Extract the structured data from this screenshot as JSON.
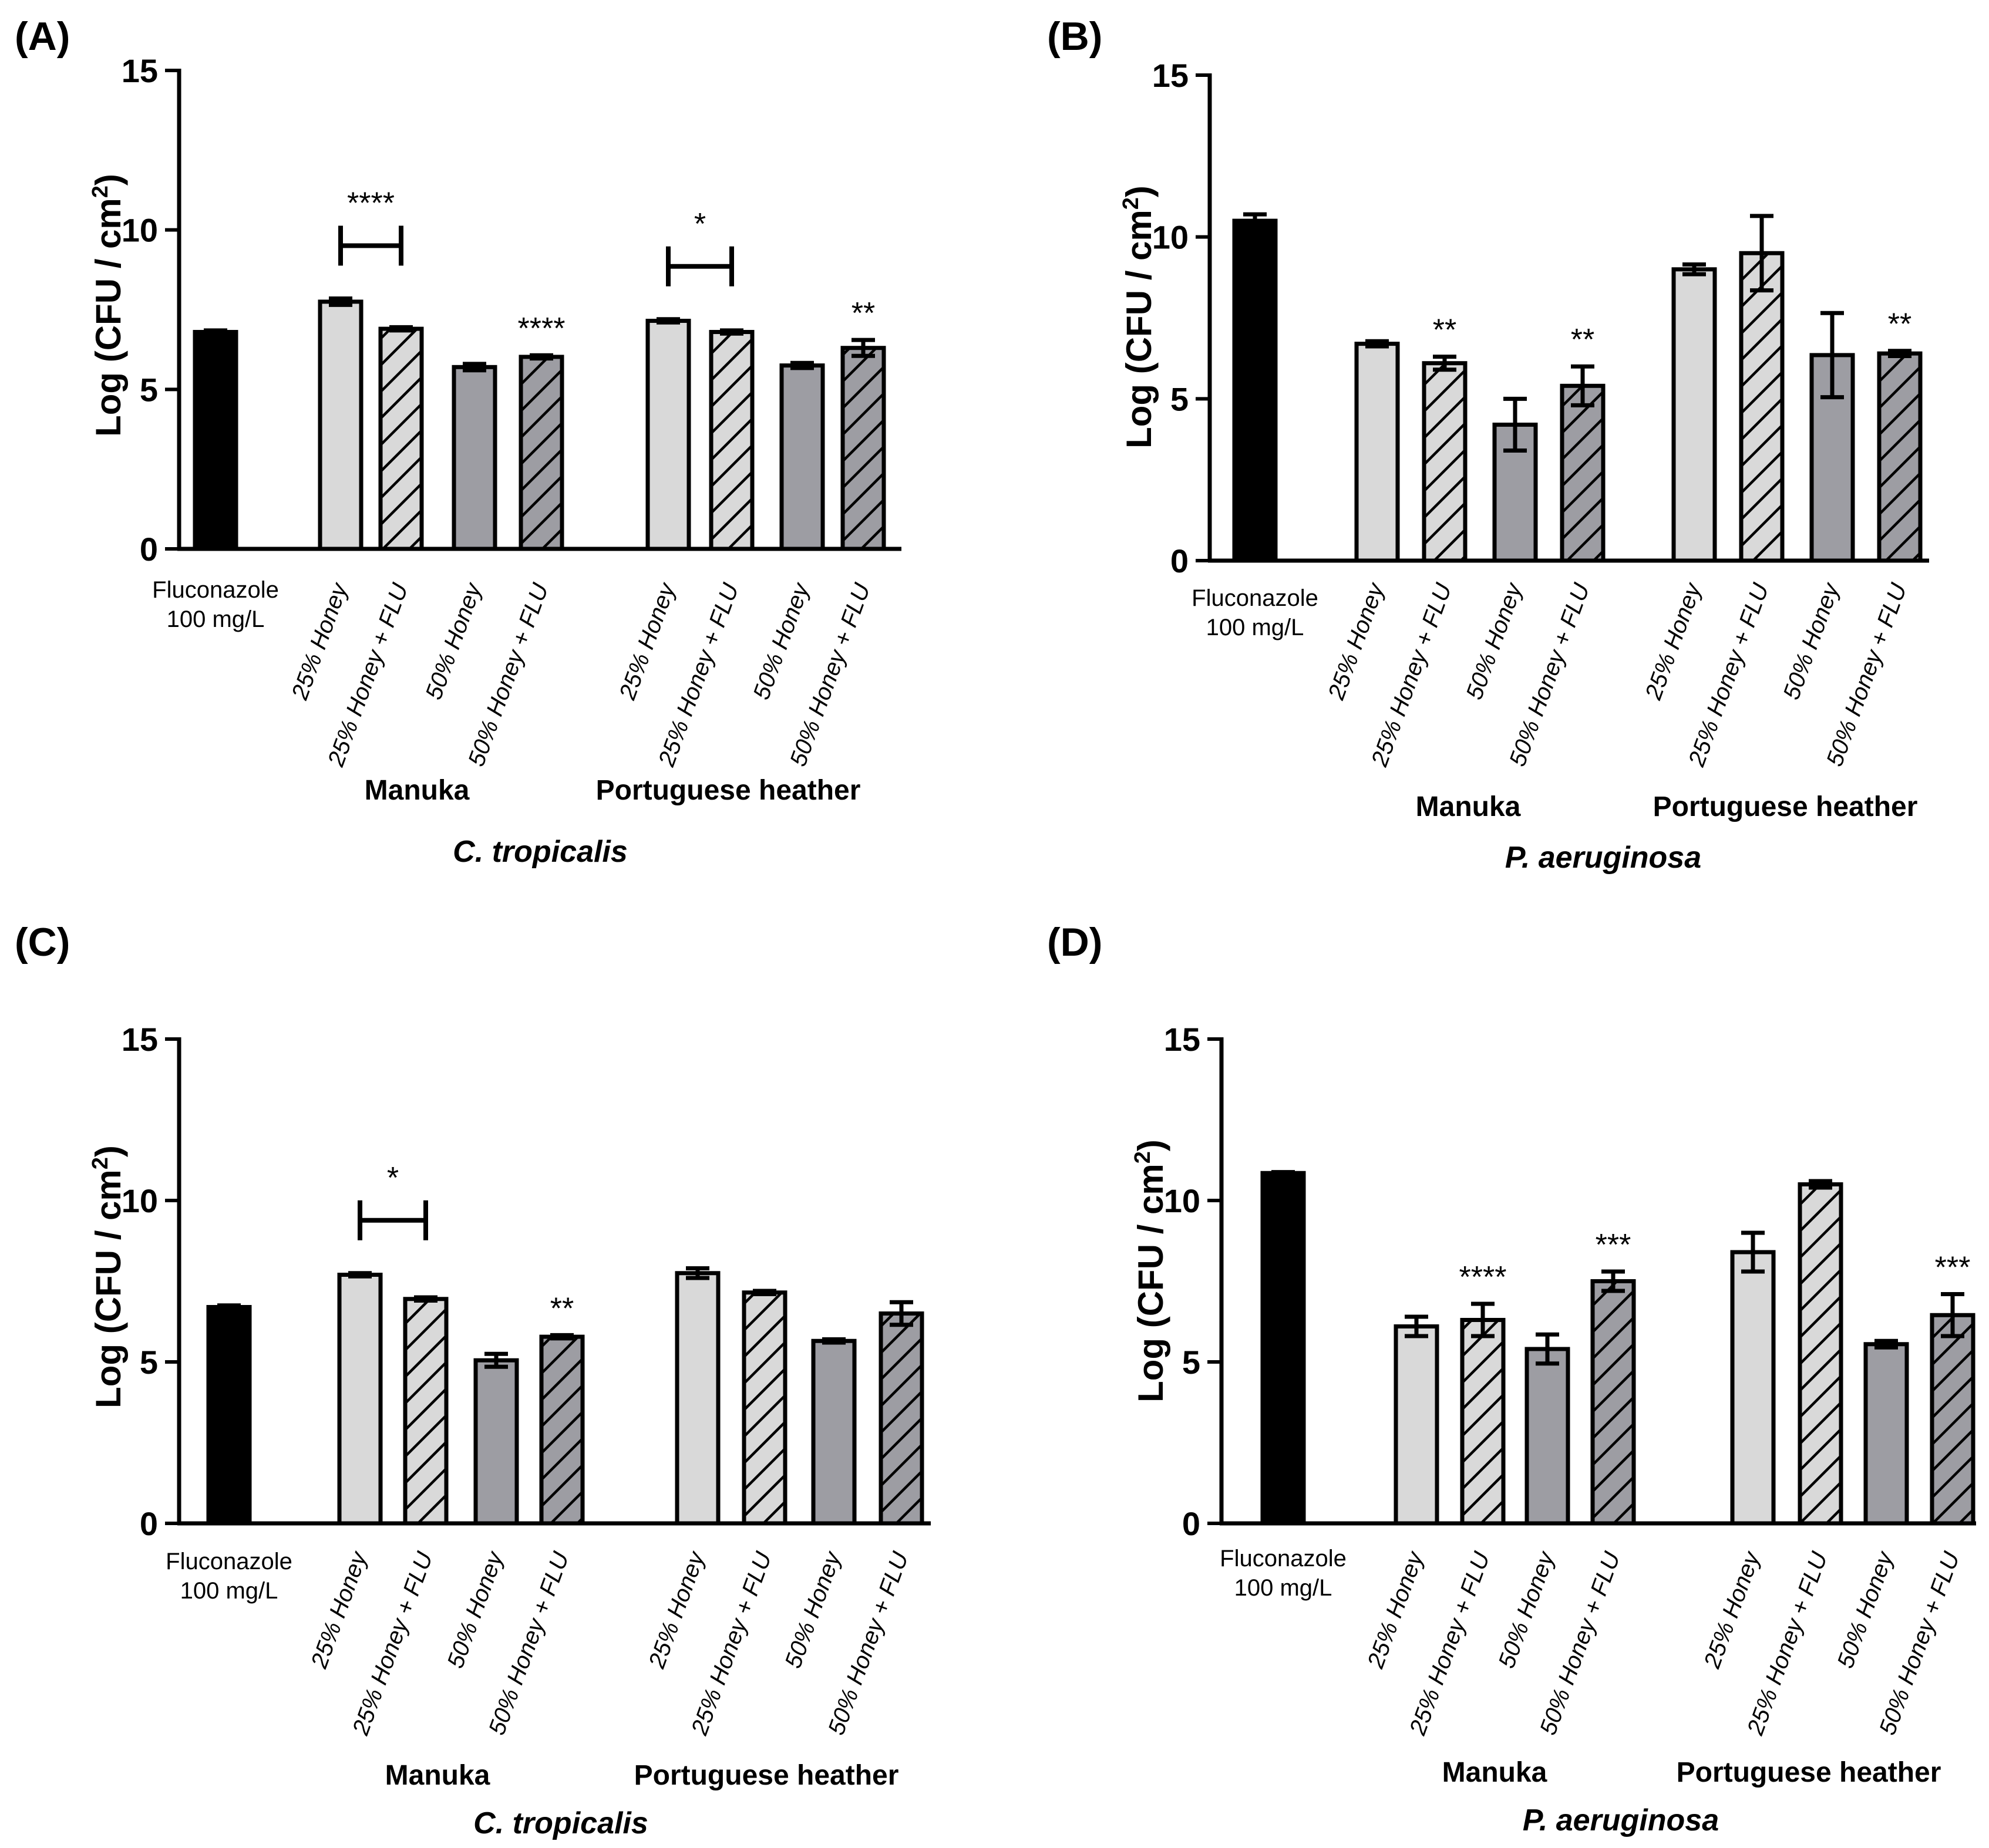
{
  "colors": {
    "control": "#000000",
    "light": "#d9d9d9",
    "dark": "#9d9da3",
    "hatch_stroke": "#000000"
  },
  "chart_data": [
    {
      "panel": "(A)",
      "type": "bar",
      "ylabel": "Log (CFU / cm",
      "ylabel_sup": "2",
      "ylabel_close": ")",
      "ylim": [
        0,
        15
      ],
      "yticks": [
        "0",
        "5",
        "10",
        "15"
      ],
      "control": {
        "label1": "Fluconazole",
        "label2": "100 mg/L",
        "value": 6.8,
        "err": 0.05
      },
      "groups": [
        {
          "name": "Manuka",
          "categories": [
            "25% Honey",
            "25% Honey + FLU",
            "50% Honey",
            "50% Honey + FLU"
          ],
          "values": [
            7.75,
            6.9,
            5.7,
            6.02
          ],
          "errors": [
            0.1,
            0.05,
            0.1,
            0.05
          ],
          "significance": [
            "",
            "",
            "",
            "****"
          ]
        },
        {
          "name": "Portuguese heather",
          "categories": [
            "25% Honey",
            "25% Honey + FLU",
            "50% Honey",
            "50% Honey + FLU"
          ],
          "values": [
            7.15,
            6.8,
            5.75,
            6.3
          ],
          "errors": [
            0.05,
            0.05,
            0.08,
            0.25
          ],
          "significance": [
            "",
            "",
            "",
            "**"
          ]
        }
      ],
      "brackets": [
        {
          "group": 0,
          "from": 0,
          "to": 1,
          "label": "****"
        },
        {
          "group": 1,
          "from": 0,
          "to": 1,
          "label": "*"
        }
      ],
      "organism": "C. tropicalis"
    },
    {
      "panel": "(B)",
      "type": "bar",
      "ylabel": "Log (CFU / cm",
      "ylabel_sup": "2",
      "ylabel_close": ")",
      "ylim": [
        0,
        15
      ],
      "yticks": [
        "0",
        "5",
        "10",
        "15"
      ],
      "control": {
        "label1": "Fluconazole",
        "label2": "100 mg/L",
        "value": 10.5,
        "err": 0.2
      },
      "groups": [
        {
          "name": "Manuka",
          "categories": [
            "25% Honey",
            "25% Honey + FLU",
            "50% Honey",
            "50% Honey + FLU"
          ],
          "values": [
            6.7,
            6.1,
            4.2,
            5.4
          ],
          "errors": [
            0.08,
            0.2,
            0.8,
            0.6
          ],
          "significance": [
            "",
            "**",
            "",
            "**"
          ]
        },
        {
          "name": "Portuguese heather",
          "categories": [
            "25% Honey",
            "25% Honey + FLU",
            "50% Honey",
            "50% Honey + FLU"
          ],
          "values": [
            9.0,
            9.5,
            6.35,
            6.4
          ],
          "errors": [
            0.15,
            1.15,
            1.3,
            0.08
          ],
          "significance": [
            "",
            "",
            "",
            "**"
          ]
        }
      ],
      "brackets": [],
      "organism": "P. aeruginosa"
    },
    {
      "panel": "(C)",
      "type": "bar",
      "ylabel": "Log (CFU / cm",
      "ylabel_sup": "2",
      "ylabel_close": ")",
      "ylim": [
        0,
        15
      ],
      "yticks": [
        "0",
        "5",
        "10",
        "15"
      ],
      "control": {
        "label1": "Fluconazole",
        "label2": "100 mg/L",
        "value": 6.7,
        "err": 0.05
      },
      "groups": [
        {
          "name": "Manuka",
          "categories": [
            "25% Honey",
            "25% Honey + FLU",
            "50% Honey",
            "50% Honey + FLU"
          ],
          "values": [
            7.7,
            6.95,
            5.05,
            5.78
          ],
          "errors": [
            0.05,
            0.05,
            0.2,
            0.05
          ],
          "significance": [
            "",
            "",
            "",
            "**"
          ]
        },
        {
          "name": "Portuguese heather",
          "categories": [
            "25% Honey",
            "25% Honey + FLU",
            "50% Honey",
            "50% Honey + FLU"
          ],
          "values": [
            7.75,
            7.15,
            5.65,
            6.5
          ],
          "errors": [
            0.15,
            0.05,
            0.05,
            0.35
          ],
          "significance": [
            "",
            "",
            "",
            ""
          ]
        }
      ],
      "brackets": [
        {
          "group": 0,
          "from": 0,
          "to": 1,
          "label": "*"
        }
      ],
      "organism": "C. tropicalis"
    },
    {
      "panel": "(D)",
      "type": "bar",
      "ylabel": "Log (CFU / cm",
      "ylabel_sup": "2",
      "ylabel_close": ")",
      "ylim": [
        0,
        15
      ],
      "yticks": [
        "0",
        "5",
        "10",
        "15"
      ],
      "control": {
        "label1": "Fluconazole",
        "label2": "100 mg/L",
        "value": 10.85,
        "err": 0.03
      },
      "groups": [
        {
          "name": "Manuka",
          "categories": [
            "25% Honey",
            "25% Honey + FLU",
            "50% Honey",
            "50% Honey + FLU"
          ],
          "values": [
            6.1,
            6.3,
            5.4,
            7.5
          ],
          "errors": [
            0.3,
            0.5,
            0.45,
            0.3
          ],
          "significance": [
            "",
            "****",
            "",
            "***"
          ]
        },
        {
          "name": "Portuguese heather",
          "categories": [
            "25% Honey",
            "25% Honey + FLU",
            "50% Honey",
            "50% Honey + FLU"
          ],
          "values": [
            8.4,
            10.5,
            5.55,
            6.45
          ],
          "errors": [
            0.6,
            0.1,
            0.1,
            0.65
          ],
          "significance": [
            "",
            "",
            "",
            "***"
          ]
        }
      ],
      "brackets": [],
      "organism": "P. aeruginosa"
    }
  ]
}
